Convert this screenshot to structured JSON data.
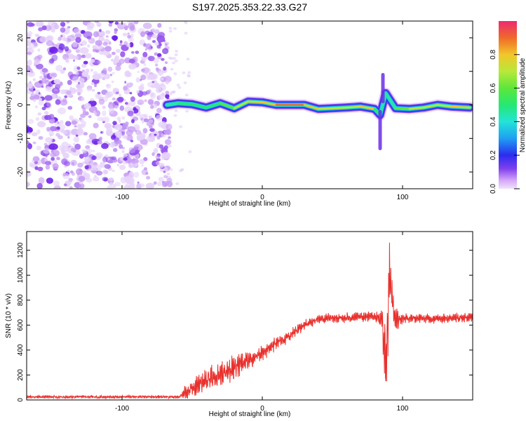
{
  "title": "S197.2025.353.22.33.G27",
  "chart_data": [
    {
      "type": "heatmap",
      "xlabel": "Height of straight line (km)",
      "ylabel": "Frequency (Hz)",
      "xlim": [
        -168,
        150
      ],
      "ylim": [
        -25,
        25
      ],
      "xticks": [
        -100,
        0,
        100
      ],
      "yticks": [
        -20,
        -10,
        0,
        10,
        20
      ],
      "colorbar": {
        "label": "Normalized spectral amplitude",
        "range": [
          0,
          1
        ],
        "ticks": [
          "0.0",
          "0.2",
          "0.4",
          "0.6",
          "0.8"
        ],
        "tick_values": [
          0.0,
          0.2,
          0.4,
          0.6,
          0.8
        ]
      },
      "noise_region_x": [
        -168,
        -66
      ],
      "ridge": {
        "x": [
          -68,
          -60,
          -50,
          -40,
          -30,
          -20,
          -10,
          0,
          10,
          20,
          30,
          40,
          50,
          60,
          70,
          80,
          84,
          88,
          95,
          105,
          115,
          125,
          135,
          148
        ],
        "frequency": [
          0.0,
          0.5,
          0.2,
          -0.8,
          0.5,
          -1.0,
          1.0,
          0.8,
          0.0,
          0.0,
          0.0,
          -1.2,
          -1.0,
          -0.8,
          -0.5,
          -1.2,
          -3.0,
          3.5,
          -1.0,
          -1.2,
          -0.8,
          0.0,
          -0.5,
          -0.8
        ],
        "amplitude": [
          0.45,
          0.5,
          0.6,
          0.55,
          0.6,
          0.6,
          0.85,
          0.8,
          0.95,
          0.95,
          0.9,
          0.75,
          0.8,
          0.75,
          0.8,
          0.85,
          0.3,
          0.3,
          0.55,
          0.7,
          0.75,
          0.7,
          0.8,
          0.95
        ]
      }
    },
    {
      "type": "line",
      "xlabel": "Height of straight line (km)",
      "ylabel": "SNR (10 * v/v)",
      "xlim": [
        -168,
        150
      ],
      "ylim": [
        0,
        1350
      ],
      "xticks": [
        -100,
        0,
        100
      ],
      "yticks": [
        0,
        200,
        400,
        600,
        800,
        1000,
        1200
      ],
      "color": "#e8302c",
      "series": [
        {
          "name": "SNR",
          "envelope_x": [
            -168,
            -60,
            -55,
            -40,
            -20,
            0,
            20,
            30,
            40,
            60,
            80,
            85,
            88,
            91,
            94,
            100,
            150
          ],
          "envelope_y": [
            25,
            25,
            60,
            160,
            260,
            380,
            520,
            600,
            650,
            660,
            670,
            650,
            300,
            1000,
            660,
            650,
            660
          ],
          "envelope_amplitude": [
            12,
            12,
            60,
            90,
            120,
            60,
            50,
            40,
            40,
            40,
            40,
            100,
            300,
            350,
            120,
            40,
            40
          ]
        }
      ]
    }
  ]
}
